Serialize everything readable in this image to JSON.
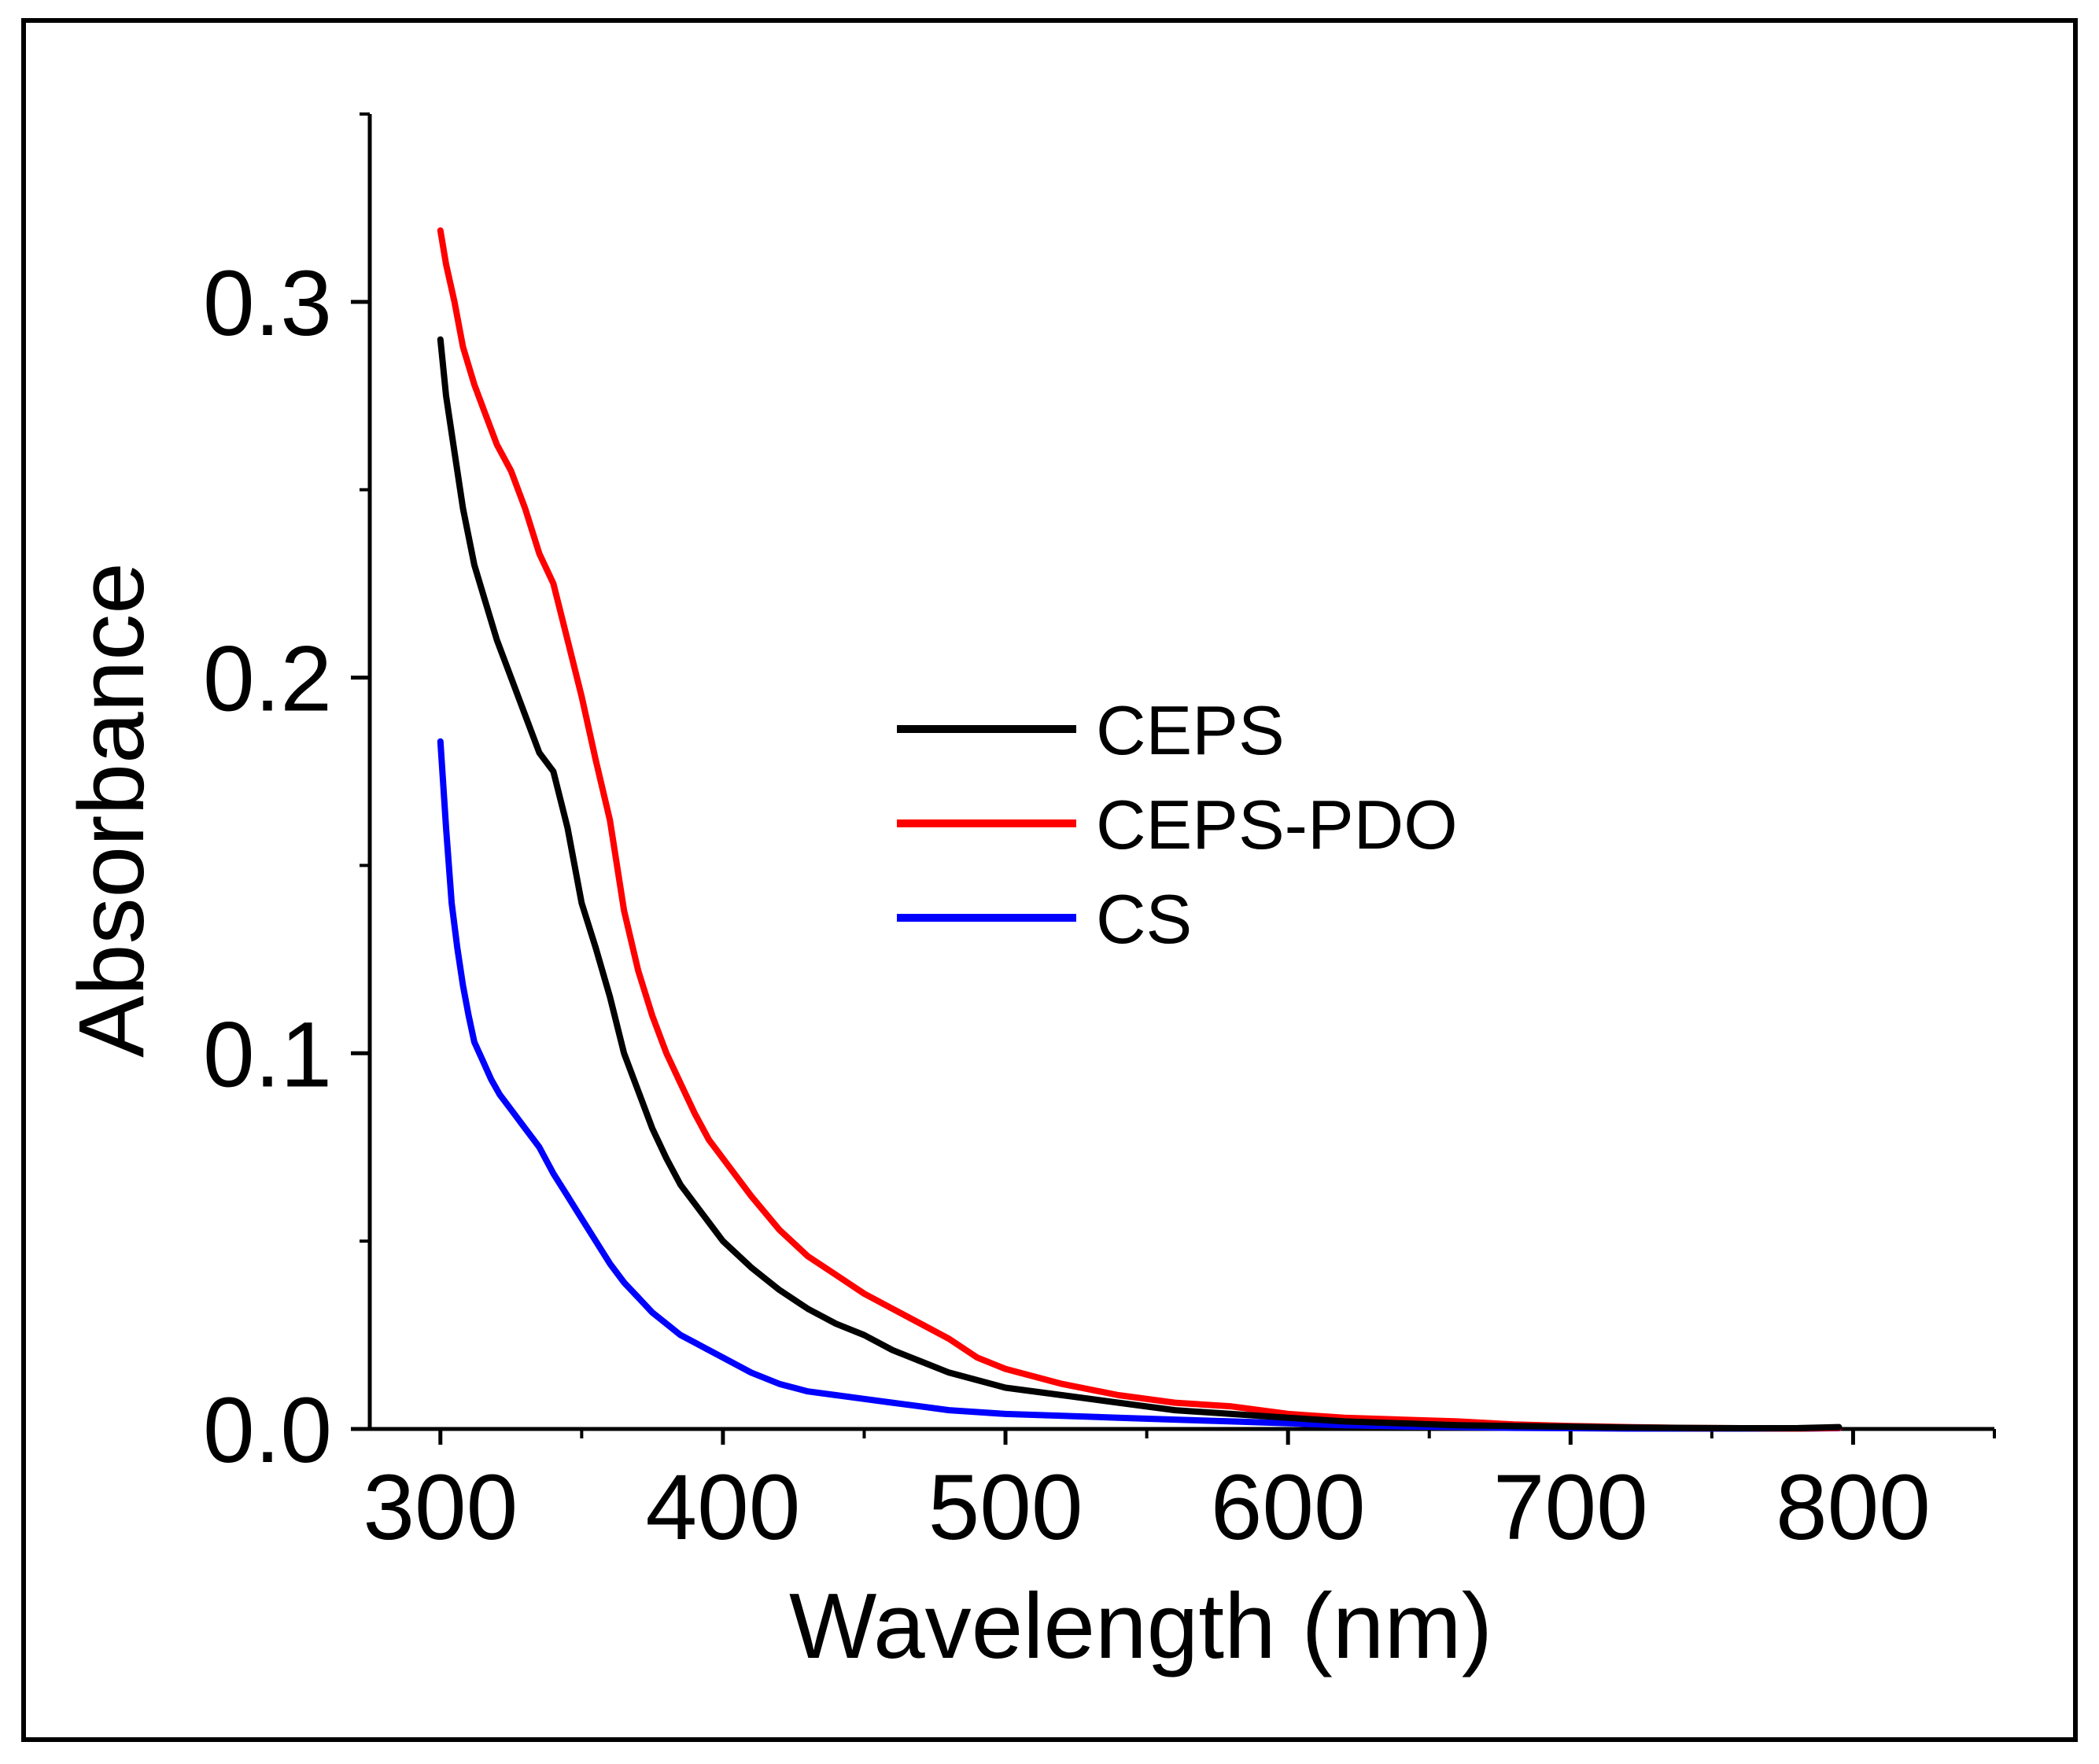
{
  "chart_data": {
    "type": "line",
    "title": "",
    "xlabel": "Wavelength (nm)",
    "ylabel": "Absorbance",
    "xlim": [
      275,
      850
    ],
    "ylim": [
      0.0,
      0.35
    ],
    "x_ticks": [
      300,
      400,
      500,
      600,
      700,
      800
    ],
    "x_tick_labels": [
      "300",
      "400",
      "500",
      "600",
      "700",
      "800"
    ],
    "x_minor_ticks": [
      350,
      450,
      550,
      650,
      750,
      850
    ],
    "y_ticks": [
      0.0,
      0.1,
      0.2,
      0.3
    ],
    "y_tick_labels": [
      "0.0",
      "0.1",
      "0.2",
      "0.3"
    ],
    "y_minor_ticks": [
      0.05,
      0.15,
      0.25,
      0.35
    ],
    "grid": false,
    "legend_position": "center-right",
    "series": [
      {
        "name": "CEPS",
        "color": "#000000",
        "x": [
          300,
          302,
          305,
          308,
          312,
          316,
          320,
          325,
          330,
          335,
          340,
          345,
          350,
          355,
          360,
          365,
          370,
          375,
          380,
          385,
          390,
          395,
          400,
          410,
          420,
          430,
          440,
          450,
          460,
          470,
          480,
          490,
          500,
          520,
          540,
          560,
          580,
          600,
          620,
          640,
          660,
          680,
          700,
          720,
          740,
          760,
          780,
          795
        ],
        "y": [
          0.29,
          0.275,
          0.26,
          0.245,
          0.23,
          0.22,
          0.21,
          0.2,
          0.19,
          0.18,
          0.175,
          0.16,
          0.14,
          0.128,
          0.115,
          0.1,
          0.09,
          0.08,
          0.072,
          0.065,
          0.06,
          0.055,
          0.05,
          0.043,
          0.037,
          0.032,
          0.028,
          0.025,
          0.021,
          0.018,
          0.015,
          0.013,
          0.011,
          0.009,
          0.007,
          0.005,
          0.004,
          0.003,
          0.002,
          0.0015,
          0.001,
          0.0008,
          0.0006,
          0.0004,
          0.0003,
          0.0002,
          0.0002,
          0.0005
        ]
      },
      {
        "name": "CEPS-PDO",
        "color": "#ff0000",
        "x": [
          300,
          302,
          305,
          308,
          312,
          316,
          320,
          325,
          330,
          335,
          340,
          345,
          350,
          355,
          360,
          365,
          370,
          375,
          380,
          385,
          390,
          395,
          400,
          410,
          420,
          430,
          440,
          450,
          460,
          470,
          480,
          490,
          500,
          520,
          540,
          560,
          580,
          600,
          620,
          640,
          660,
          680,
          700,
          720,
          740,
          760,
          780,
          795
        ],
        "y": [
          0.319,
          0.31,
          0.3,
          0.288,
          0.278,
          0.27,
          0.262,
          0.255,
          0.245,
          0.233,
          0.225,
          0.21,
          0.195,
          0.178,
          0.162,
          0.138,
          0.122,
          0.11,
          0.1,
          0.092,
          0.084,
          0.077,
          0.072,
          0.062,
          0.053,
          0.046,
          0.041,
          0.036,
          0.032,
          0.028,
          0.024,
          0.019,
          0.016,
          0.012,
          0.009,
          0.007,
          0.006,
          0.004,
          0.003,
          0.0025,
          0.002,
          0.0012,
          0.0008,
          0.0005,
          0.0003,
          0.0002,
          0.0001,
          0.0003
        ]
      },
      {
        "name": "CS",
        "color": "#0000ff",
        "x": [
          300,
          302,
          304,
          306,
          308,
          310,
          312,
          315,
          318,
          321,
          325,
          330,
          335,
          340,
          345,
          350,
          355,
          360,
          365,
          370,
          375,
          380,
          385,
          390,
          395,
          400,
          410,
          420,
          430,
          440,
          450,
          460,
          470,
          480,
          490,
          500,
          520,
          540,
          560,
          580,
          600,
          620,
          640,
          660,
          680,
          700,
          720,
          740,
          760,
          780,
          795
        ],
        "y": [
          0.183,
          0.16,
          0.14,
          0.128,
          0.118,
          0.11,
          0.103,
          0.098,
          0.093,
          0.089,
          0.085,
          0.08,
          0.075,
          0.068,
          0.062,
          0.056,
          0.05,
          0.044,
          0.039,
          0.035,
          0.031,
          0.028,
          0.025,
          0.023,
          0.021,
          0.019,
          0.015,
          0.012,
          0.01,
          0.009,
          0.008,
          0.007,
          0.006,
          0.005,
          0.0045,
          0.004,
          0.0035,
          0.003,
          0.0025,
          0.002,
          0.0015,
          0.001,
          0.0007,
          0.0005,
          0.0003,
          0.0002,
          0.0001,
          0.0001,
          0.0001,
          0.0001,
          0.0002
        ]
      }
    ]
  }
}
